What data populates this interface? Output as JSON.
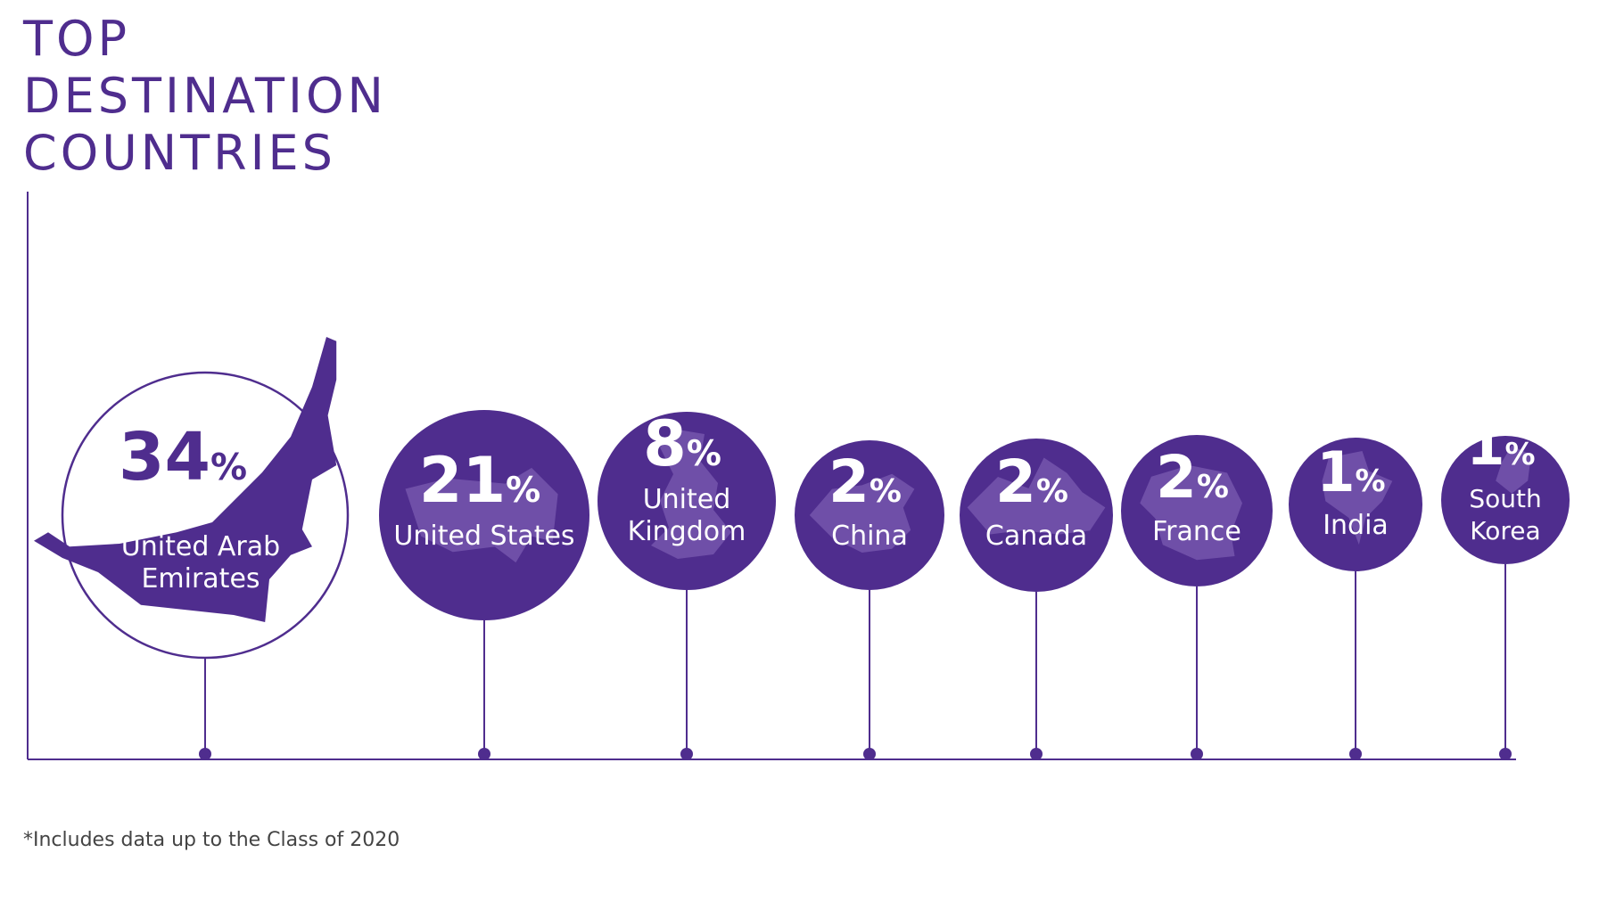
{
  "title_lines": [
    "TOP",
    "DESTINATION",
    "COUNTRIES"
  ],
  "footnote": "*Includes data up to the Class of 2020",
  "colors": {
    "primary": "#4F2D8E",
    "map_light": "#8A6BBE",
    "text_on_dark": "#FFFFFF",
    "background": "#FFFFFF"
  },
  "chart_data": {
    "type": "bubble",
    "title": "TOP DESTINATION COUNTRIES",
    "unit": "%",
    "categories": [
      "United Arab Emirates",
      "United States",
      "United Kingdom",
      "China",
      "Canada",
      "France",
      "India",
      "South Korea"
    ],
    "values": [
      34,
      21,
      8,
      2,
      2,
      2,
      1,
      1
    ],
    "label_lines": [
      [
        "United Arab",
        "Emirates"
      ],
      [
        "United States"
      ],
      [
        "United",
        "Kingdom"
      ],
      [
        "China"
      ],
      [
        "Canada"
      ],
      [
        "France"
      ],
      [
        "India"
      ],
      [
        "South",
        "Korea"
      ]
    ],
    "icons": [
      "uae-map-icon",
      "usa-map-icon",
      "uk-map-icon",
      "china-map-icon",
      "canada-map-icon",
      "france-map-icon",
      "india-map-icon",
      "south-korea-map-icon"
    ],
    "legend": "none",
    "grid": false
  }
}
